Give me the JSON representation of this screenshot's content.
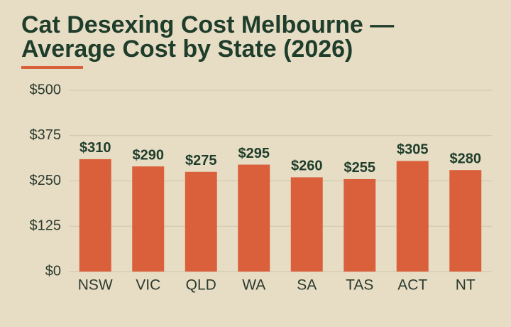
{
  "chart_data": {
    "type": "bar",
    "title": "Cat Desexing Cost Melbourne — Average Cost by State (2026)",
    "categories": [
      "NSW",
      "VIC",
      "QLD",
      "WA",
      "SA",
      "TAS",
      "ACT",
      "NT"
    ],
    "values": [
      310,
      290,
      275,
      295,
      260,
      255,
      305,
      280
    ],
    "value_labels": [
      "$310",
      "$290",
      "$275",
      "$295",
      "$260",
      "$255",
      "$305",
      "$280"
    ],
    "color": "#d9603b",
    "ylim": [
      0,
      500
    ],
    "yticks": [
      {
        "value": 0,
        "label": "$0"
      },
      {
        "value": 125,
        "label": "$125"
      },
      {
        "value": 250,
        "label": "$250"
      },
      {
        "value": 375,
        "label": "$375"
      },
      {
        "value": 500,
        "label": "$500"
      }
    ],
    "grid": true
  }
}
